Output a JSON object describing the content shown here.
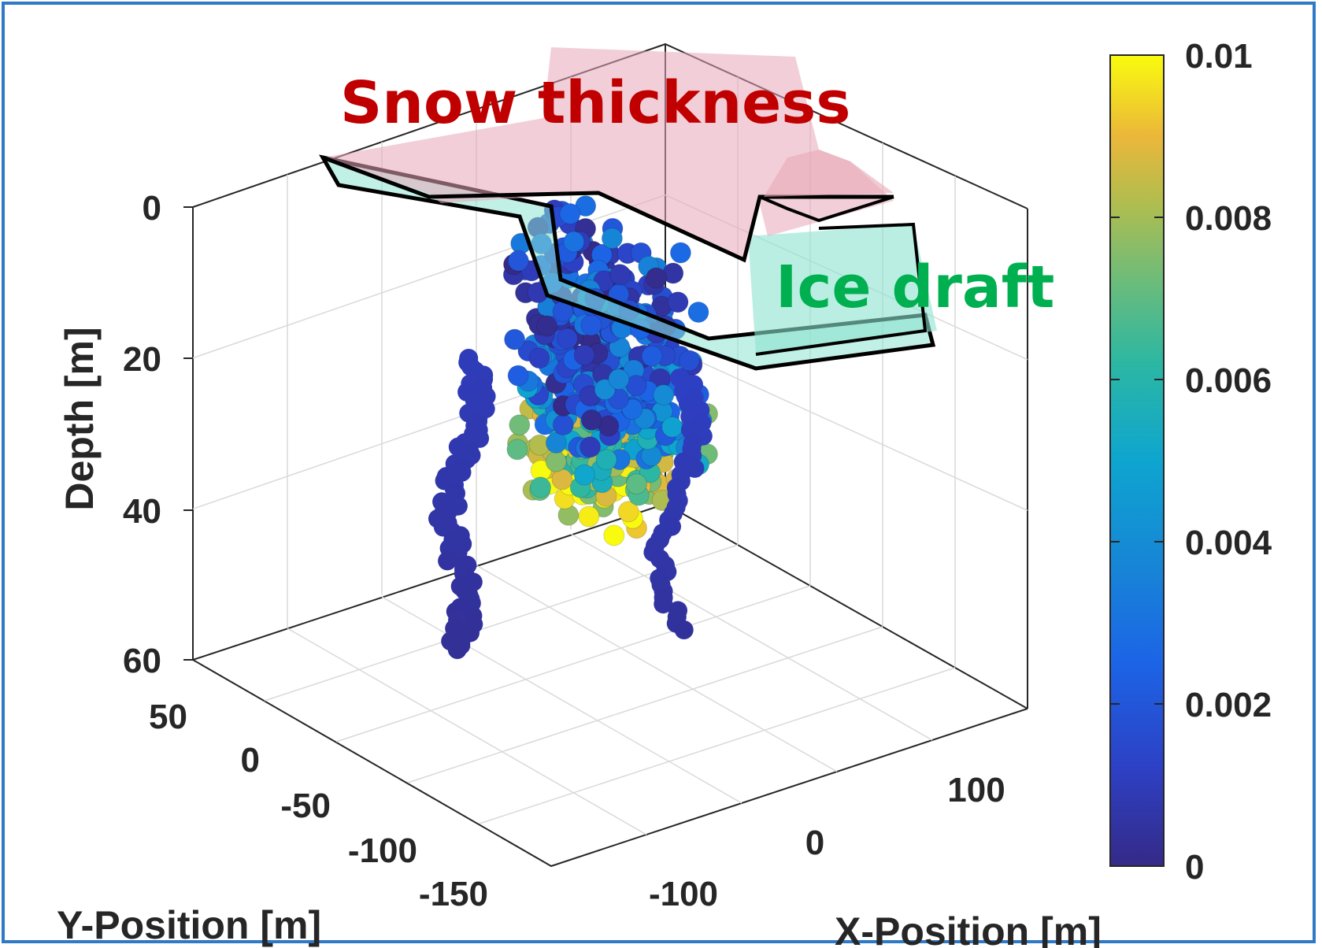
{
  "chart_data": {
    "type": "scatter",
    "subtype": "3d-scatter-colored",
    "title": "",
    "xlabel": "X-Position [m]",
    "ylabel": "Y-Position [m]",
    "zlabel": "Depth [m]",
    "x_ticks": [
      "-100",
      "0",
      "100"
    ],
    "y_ticks": [
      "50",
      "0",
      "-50",
      "-100",
      "-150"
    ],
    "z_ticks": [
      "0",
      "20",
      "40",
      "60"
    ],
    "zlim": [
      0,
      60
    ],
    "xlim": [
      -150,
      150
    ],
    "ylim": [
      -150,
      60
    ],
    "z_reversed": true,
    "grid": true,
    "colorbar": {
      "ticks": [
        "0",
        "0.002",
        "0.004",
        "0.006",
        "0.008",
        "0.01"
      ],
      "range": [
        0,
        0.01
      ],
      "colormap": "parula",
      "location": "right"
    },
    "annotations": [
      {
        "text": "Snow thickness",
        "color": "#c00000"
      },
      {
        "text": "Ice draft",
        "color": "#00b050"
      }
    ],
    "surfaces": [
      {
        "name": "snow-surface",
        "color": "#e7a8b8",
        "edge": "#000000"
      },
      {
        "name": "ice-surface",
        "color": "#8de3d1",
        "edge": "#000000"
      }
    ],
    "series": [
      {
        "clusters": [
          {
            "x": -120,
            "y": -150,
            "z": 9,
            "c": 0.009
          },
          {
            "x": -100,
            "y": -140,
            "z": 10,
            "c": 0.008
          },
          {
            "x": -80,
            "y": -120,
            "z": 11,
            "c": 0.007
          },
          {
            "x": -60,
            "y": -100,
            "z": 12,
            "c": 0.004
          },
          {
            "x": -40,
            "y": -80,
            "z": 13,
            "c": 0.003
          },
          {
            "x": -20,
            "y": -60,
            "z": 14,
            "c": 0.002
          },
          {
            "x": 0,
            "y": -40,
            "z": 12,
            "c": 0.002
          },
          {
            "x": 20,
            "y": -20,
            "z": 10,
            "c": 0.0018
          }
        ]
      },
      {
        "profile_A": [
          {
            "z": 20,
            "c": 0.001
          },
          {
            "z": 30,
            "c": 0.0008
          },
          {
            "z": 40,
            "c": 0.0006
          },
          {
            "z": 50,
            "c": 0.0004
          },
          {
            "z": 58,
            "c": 0.0003
          }
        ]
      },
      {
        "profile_B": [
          {
            "z": 20,
            "c": 0.0012
          },
          {
            "z": 30,
            "c": 0.0009
          },
          {
            "z": 40,
            "c": 0.0007
          },
          {
            "z": 50,
            "c": 0.0005
          },
          {
            "z": 56,
            "c": 0.0004
          }
        ]
      }
    ]
  }
}
